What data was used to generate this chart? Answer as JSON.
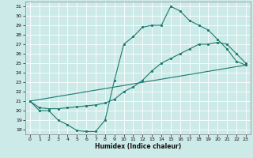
{
  "xlabel": "Humidex (Indice chaleur)",
  "xlim": [
    -0.5,
    23.5
  ],
  "ylim": [
    17.5,
    31.5
  ],
  "xticks": [
    0,
    1,
    2,
    3,
    4,
    5,
    6,
    7,
    8,
    9,
    10,
    11,
    12,
    13,
    14,
    15,
    16,
    17,
    18,
    19,
    20,
    21,
    22,
    23
  ],
  "yticks": [
    18,
    19,
    20,
    21,
    22,
    23,
    24,
    25,
    26,
    27,
    28,
    29,
    30,
    31
  ],
  "bg_color": "#cceae7",
  "line_color": "#1a7a6e",
  "curve1_x": [
    0,
    1,
    2,
    3,
    4,
    5,
    6,
    7,
    8,
    9,
    10,
    11,
    12,
    13,
    14,
    15,
    16,
    17,
    18,
    19,
    20,
    21,
    22,
    23
  ],
  "curve1_y": [
    21,
    20,
    20,
    19,
    18.5,
    17.9,
    17.8,
    17.8,
    19.0,
    23.2,
    27.0,
    27.8,
    28.8,
    29.0,
    29.0,
    31.0,
    30.5,
    29.5,
    29.0,
    28.5,
    27.5,
    26.5,
    25.2,
    24.8
  ],
  "curve2_x": [
    0,
    1,
    2,
    3,
    4,
    5,
    6,
    7,
    8,
    9,
    10,
    11,
    12,
    13,
    14,
    15,
    16,
    17,
    18,
    19,
    20,
    21,
    22,
    23
  ],
  "curve2_y": [
    21,
    20.3,
    20.2,
    20.2,
    20.3,
    20.4,
    20.5,
    20.6,
    20.8,
    21.2,
    22.0,
    22.5,
    23.2,
    24.2,
    25.0,
    25.5,
    26.0,
    26.5,
    27.0,
    27.0,
    27.2,
    27.0,
    26.0,
    25.0
  ],
  "curve3_x": [
    0,
    23
  ],
  "curve3_y": [
    21,
    24.8
  ]
}
